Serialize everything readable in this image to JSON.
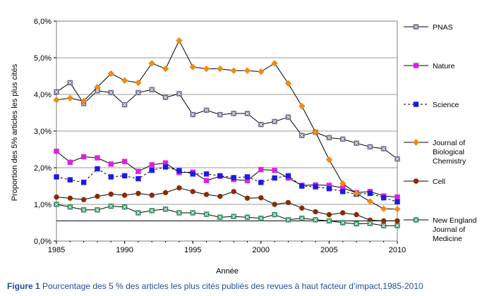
{
  "caption": {
    "label": "Figure 1",
    "text": "Pourcentage des 5 % des articles les plus cités publiés des revues à haut facteur d’impact,1985-2010"
  },
  "chart_data": {
    "type": "line",
    "xlabel": "Année",
    "ylabel": "Proportion des 5% articles les plus cités",
    "xlim": [
      1985,
      2010
    ],
    "ylim": [
      0,
      6
    ],
    "x_ticks": [
      "1985",
      "1990",
      "1995",
      "2000",
      "2005",
      "2010"
    ],
    "y_ticks": [
      "0,0%",
      "1,0%",
      "2,0%",
      "3,0%",
      "4,0%",
      "5,0%",
      "6,0%"
    ],
    "grid": "horizontal",
    "legend_position": "right",
    "reference_line": 0.55,
    "x": [
      1985,
      1986,
      1987,
      1988,
      1989,
      1990,
      1991,
      1992,
      1993,
      1994,
      1995,
      1996,
      1997,
      1998,
      1999,
      2000,
      2001,
      2002,
      2003,
      2004,
      2005,
      2006,
      2007,
      2008,
      2009,
      2010
    ],
    "series": [
      {
        "name": "PNAS",
        "color": "#6a6a8a",
        "marker": "square-x",
        "dash": "",
        "values": [
          4.07,
          4.32,
          3.75,
          4.1,
          4.05,
          3.72,
          4.05,
          4.13,
          3.92,
          4.02,
          3.45,
          3.57,
          3.45,
          3.48,
          3.48,
          3.18,
          3.26,
          3.38,
          2.88,
          2.97,
          2.82,
          2.78,
          2.67,
          2.57,
          2.52,
          2.24
        ]
      },
      {
        "name": "Nature",
        "color": "#e020e0",
        "marker": "square",
        "dash": "",
        "values": [
          2.45,
          2.15,
          2.3,
          2.27,
          2.1,
          2.17,
          1.9,
          2.08,
          2.13,
          1.87,
          1.88,
          1.65,
          1.77,
          1.68,
          1.65,
          1.95,
          1.93,
          1.72,
          1.52,
          1.53,
          1.52,
          1.45,
          1.32,
          1.35,
          1.23,
          1.2
        ]
      },
      {
        "name": "Science",
        "color": "#1a1aee",
        "marker": "square",
        "dash": "3,3",
        "values": [
          1.75,
          1.67,
          1.6,
          1.97,
          1.75,
          1.78,
          1.7,
          1.93,
          2.02,
          1.92,
          1.83,
          1.83,
          1.78,
          1.73,
          1.75,
          1.6,
          1.72,
          1.78,
          1.5,
          1.48,
          1.43,
          1.35,
          1.28,
          1.3,
          1.18,
          1.07
        ]
      },
      {
        "name": "Journal of Biological Chemistry",
        "color": "#f28a10",
        "marker": "diamond",
        "dash": "",
        "values": [
          3.85,
          3.9,
          3.82,
          4.2,
          4.57,
          4.38,
          4.32,
          4.85,
          4.7,
          5.47,
          4.75,
          4.7,
          4.7,
          4.65,
          4.65,
          4.62,
          4.85,
          4.3,
          3.68,
          2.97,
          2.22,
          1.57,
          1.3,
          1.08,
          0.88,
          0.87
        ]
      },
      {
        "name": "Cell",
        "color": "#8a2a00",
        "marker": "circle",
        "dash": "",
        "values": [
          1.2,
          1.17,
          1.13,
          1.22,
          1.28,
          1.25,
          1.3,
          1.25,
          1.32,
          1.45,
          1.35,
          1.27,
          1.22,
          1.35,
          1.17,
          1.18,
          1.0,
          1.05,
          0.9,
          0.8,
          0.72,
          0.77,
          0.72,
          0.57,
          0.55,
          0.55
        ]
      },
      {
        "name": "New England Journal of Medicine",
        "color": "#2a8a5a",
        "marker": "square-x",
        "dash": "",
        "values": [
          1.0,
          0.93,
          0.85,
          0.85,
          0.95,
          0.93,
          0.77,
          0.83,
          0.87,
          0.77,
          0.77,
          0.73,
          0.65,
          0.67,
          0.65,
          0.62,
          0.72,
          0.58,
          0.62,
          0.58,
          0.55,
          0.5,
          0.47,
          0.48,
          0.42,
          0.42
        ]
      }
    ],
    "legend_lines": [
      [
        "PNAS"
      ],
      [
        "Nature"
      ],
      [
        "Science"
      ],
      [
        "Journal of",
        "Biological",
        "Chemistry"
      ],
      [
        "Cell"
      ],
      [
        "New England",
        "Journal of",
        "Medicine"
      ]
    ]
  }
}
